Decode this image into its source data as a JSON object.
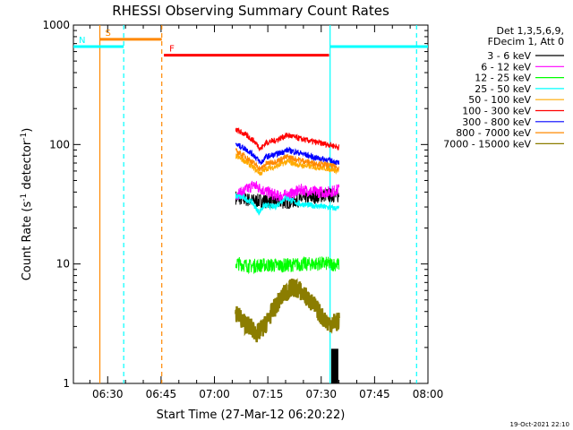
{
  "chart_data": {
    "type": "line",
    "title": "RHESSI Observing Summary Count Rates",
    "xlabel": "Start Time (27-Mar-12 06:20:22)",
    "ylabel_main": "Count Rate (s",
    "ylabel_sup1": "-1",
    "ylabel_mid": " detector",
    "ylabel_sup2": "-1",
    "ylabel_end": ")",
    "y_scale": "log",
    "ylim": [
      1,
      1000
    ],
    "xlim_minutes": [
      380.37,
      480
    ],
    "x_ticks": [
      {
        "label": "06:30",
        "minutes": 390
      },
      {
        "label": "06:45",
        "minutes": 405
      },
      {
        "label": "07:00",
        "minutes": 420
      },
      {
        "label": "07:15",
        "minutes": 435
      },
      {
        "label": "07:30",
        "minutes": 450
      },
      {
        "label": "07:45",
        "minutes": 465
      },
      {
        "label": "08:00",
        "minutes": 480
      }
    ],
    "y_ticks": [
      {
        "label": "1",
        "value": 1
      },
      {
        "label": "10",
        "value": 10
      },
      {
        "label": "100",
        "value": 100
      },
      {
        "label": "1000",
        "value": 1000
      }
    ],
    "legend_header": [
      "Det 1,3,5,6,9,",
      "FDecim 1, Att 0"
    ],
    "series": [
      {
        "name": "3 - 6 keV",
        "color": "#000000",
        "segments": [
          {
            "x": [
              426.0,
              430.5,
              440.5,
              447.0,
              451.5,
              455.0
            ],
            "y": [
              36,
              34,
              33,
              36,
              38,
              37
            ]
          }
        ]
      },
      {
        "name": "6 - 12 keV",
        "color": "#ff00ff",
        "segments": [
          {
            "x": [
              426.0,
              428.0,
              431.0,
              434.0,
              438.0,
              441.0,
              444.5,
              448.0,
              452.0,
              455.0
            ],
            "y": [
              38,
              40,
              46,
              41,
              37,
              38,
              42,
              40,
              40,
              42
            ]
          }
        ]
      },
      {
        "name": "12 - 25 keV",
        "color": "#00ff00",
        "segments": [
          {
            "x": [
              426.0,
              430.0,
              434.0,
              438.0,
              444.0,
              450.0,
              455.0
            ],
            "y": [
              10.2,
              9.6,
              9.8,
              9.7,
              9.9,
              10.1,
              9.9
            ]
          }
        ]
      },
      {
        "name": "25 - 50 keV",
        "color": "#00ffff",
        "segments": [
          {
            "x": [
              426.0,
              428.0,
              430.5,
              432.5,
              434.0,
              437.0,
              440.0,
              443.5,
              447.0,
              451.0,
              455.0
            ],
            "y": [
              37,
              36,
              33,
              27,
              31,
              30,
              36,
              32,
              31,
              30,
              29
            ]
          }
        ]
      },
      {
        "name": "50 - 100 keV",
        "color": "#ffaa00",
        "segments": [
          {
            "x": [
              426.0,
              428.5,
              431.0,
              433.0,
              434.5,
              437.0,
              440.5,
              444.0,
              448.0,
              452.0,
              455.0
            ],
            "y": [
              80,
              73,
              64,
              57,
              63,
              65,
              72,
              67,
              65,
              63,
              60
            ]
          }
        ]
      },
      {
        "name": "100 - 300 keV",
        "color": "#ff0000",
        "segments": [
          {
            "x": [
              426.0,
              428.5,
              431.0,
              433.0,
              434.5,
              437.0,
              440.5,
              444.0,
              448.0,
              452.0,
              455.0
            ],
            "y": [
              133,
              122,
              108,
              92,
              104,
              108,
              120,
              112,
              105,
              100,
              95
            ]
          }
        ]
      },
      {
        "name": "300 - 800 keV",
        "color": "#0000ff",
        "segments": [
          {
            "x": [
              426.0,
              428.5,
              431.0,
              433.0,
              434.5,
              437.0,
              440.5,
              444.0,
              448.0,
              452.0,
              455.0
            ],
            "y": [
              100,
              93,
              82,
              70,
              79,
              82,
              90,
              85,
              78,
              74,
              70
            ]
          }
        ]
      },
      {
        "name": "800 - 7000 keV",
        "color": "#ff8800",
        "segments": [
          {
            "x": [
              426.0,
              428.5,
              431.0,
              433.0,
              434.5,
              437.0,
              440.5,
              444.0,
              448.0,
              452.0,
              455.0
            ],
            "y": [
              88,
              80,
              70,
              62,
              69,
              72,
              79,
              74,
              70,
              67,
              64
            ]
          }
        ]
      },
      {
        "name": "7000 - 15000 keV",
        "color": "#8b7d00",
        "segments": [
          {
            "x": [
              426.0,
              428.0,
              430.0,
              432.0,
              434.0,
              436.0,
              438.0,
              440.0,
              442.0,
              444.0,
              446.0,
              448.0,
              450.0,
              452.0,
              455.0
            ],
            "y": [
              4.0,
              3.3,
              3.0,
              2.6,
              3.0,
              3.9,
              4.8,
              5.8,
              6.4,
              6.0,
              5.2,
              4.5,
              3.7,
              3.2,
              3.3
            ]
          }
        ]
      }
    ],
    "annotations": [
      {
        "name": "S",
        "label": "S",
        "color": "#ff8800",
        "start_min": 387.8,
        "end_min": 405.2,
        "level": 760
      },
      {
        "name": "N",
        "label": "N",
        "color": "#00ffff",
        "start_min": 380.37,
        "end_min": 394.5,
        "level": 660
      },
      {
        "name": "F",
        "label": "F",
        "color": "#ff0000",
        "start_min": 405.8,
        "end_min": 452.2,
        "level": 560
      },
      {
        "name": "N2",
        "label": "",
        "color": "#00ffff",
        "start_min": 452.5,
        "end_min": 480,
        "level": 660
      }
    ],
    "vertical_lines": [
      {
        "minutes": 387.8,
        "color": "#ff8800",
        "style": "solid"
      },
      {
        "minutes": 394.5,
        "color": "#00ffff",
        "style": "dashed"
      },
      {
        "minutes": 405.2,
        "color": "#ff8800",
        "style": "dashed"
      },
      {
        "minutes": 452.5,
        "color": "#00ffff",
        "style": "solid"
      },
      {
        "minutes": 476.8,
        "color": "#00ffff",
        "style": "dashed"
      }
    ],
    "footer": "19-Oct-2021 22:10"
  }
}
